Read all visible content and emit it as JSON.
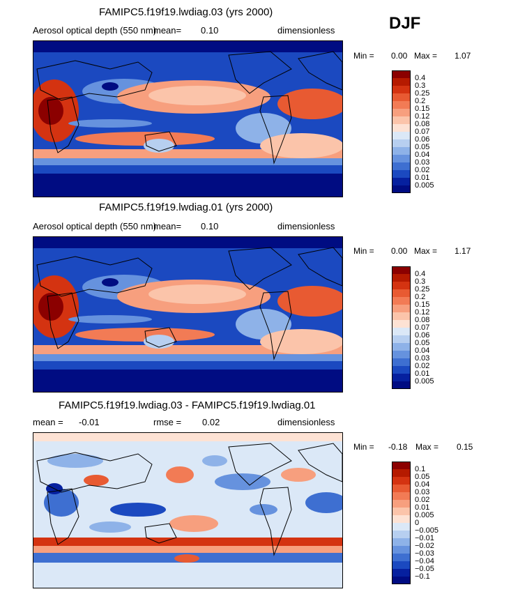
{
  "season": "DJF",
  "panels": [
    {
      "title": "FAMIPC5.f19f19.lwdiag.03 (yrs 2000)",
      "left_label": "Aerosol optical depth (550 nm)",
      "mean_label": "mean=",
      "mean_value": "0.10",
      "units": "dimensionless",
      "min_label": "Min =",
      "min_value": "0.00",
      "max_label": "Max =",
      "max_value": "1.07",
      "colorbar_labels": [
        "0.4",
        "0.3",
        "0.25",
        "0.2",
        "0.15",
        "0.12",
        "0.08",
        "0.07",
        "0.06",
        "0.05",
        "0.04",
        "0.03",
        "0.02",
        "0.01",
        "0.005"
      ],
      "colors": [
        "#8b0000",
        "#b51a00",
        "#d43311",
        "#e85a32",
        "#f27b55",
        "#f79f7e",
        "#fbc4aa",
        "#fde2d4",
        "#dbe8f7",
        "#b7cff0",
        "#8eb2e8",
        "#6692de",
        "#3e6fd1",
        "#1b49c0",
        "#06209f",
        "#000c82"
      ]
    },
    {
      "title": "FAMIPC5.f19f19.lwdiag.01 (yrs 2000)",
      "left_label": "Aerosol optical depth (550 nm)",
      "mean_label": "mean=",
      "mean_value": "0.10",
      "units": "dimensionless",
      "min_label": "Min =",
      "min_value": "0.00",
      "max_label": "Max =",
      "max_value": "1.17",
      "colorbar_labels": [
        "0.4",
        "0.3",
        "0.25",
        "0.2",
        "0.15",
        "0.12",
        "0.08",
        "0.07",
        "0.06",
        "0.05",
        "0.04",
        "0.03",
        "0.02",
        "0.01",
        "0.005"
      ],
      "colors": [
        "#8b0000",
        "#b51a00",
        "#d43311",
        "#e85a32",
        "#f27b55",
        "#f79f7e",
        "#fbc4aa",
        "#fde2d4",
        "#dbe8f7",
        "#b7cff0",
        "#8eb2e8",
        "#6692de",
        "#3e6fd1",
        "#1b49c0",
        "#06209f",
        "#000c82"
      ]
    },
    {
      "title": "FAMIPC5.f19f19.lwdiag.03 - FAMIPC5.f19f19.lwdiag.01",
      "left_label": "mean =",
      "left_value": "-0.01",
      "rmse_label": "rmse =",
      "rmse_value": "0.02",
      "units": "dimensionless",
      "min_label": "Min =",
      "min_value": "-0.18",
      "max_label": "Max =",
      "max_value": "0.15",
      "colorbar_labels": [
        "0.1",
        "0.05",
        "0.04",
        "0.03",
        "0.02",
        "0.01",
        "0.005",
        "0",
        "-0.005",
        "-0.01",
        "-0.02",
        "-0.03",
        "-0.04",
        "-0.05",
        "-0.1"
      ],
      "colors": [
        "#8b0000",
        "#b51a00",
        "#d43311",
        "#e85a32",
        "#f27b55",
        "#f79f7e",
        "#fbc4aa",
        "#fde2d4",
        "#dbe8f7",
        "#b7cff0",
        "#8eb2e8",
        "#6692de",
        "#3e6fd1",
        "#1b49c0",
        "#06209f",
        "#000c82"
      ]
    }
  ]
}
